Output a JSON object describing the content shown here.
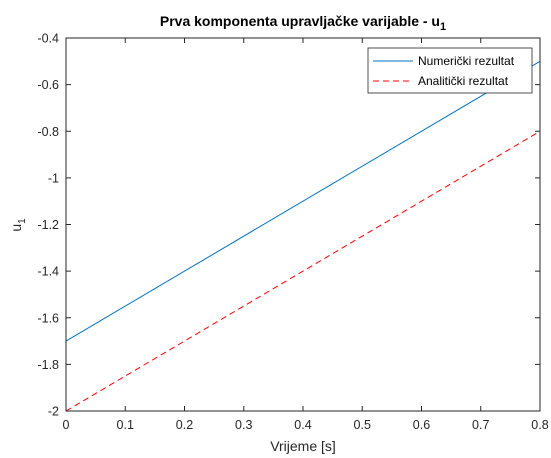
{
  "chart_data": {
    "type": "line",
    "title": "Prva komponenta upravljačke varijable - u",
    "title_subscript": "1",
    "xlabel": "Vrijeme [s]",
    "ylabel": "u",
    "ylabel_subscript": "1",
    "xlim": [
      0,
      0.8
    ],
    "ylim": [
      -2,
      -0.4
    ],
    "xticks": [
      0,
      0.1,
      0.2,
      0.3,
      0.4,
      0.5,
      0.6,
      0.7,
      0.8
    ],
    "xtick_labels": [
      "0",
      "0.1",
      "0.2",
      "0.3",
      "0.4",
      "0.5",
      "0.6",
      "0.7",
      "0.8"
    ],
    "yticks": [
      -2,
      -1.8,
      -1.6,
      -1.4,
      -1.2,
      -1,
      -0.8,
      -0.6,
      -0.4
    ],
    "ytick_labels": [
      "-2",
      "-1.8",
      "-1.6",
      "-1.4",
      "-1.2",
      "-1",
      "-0.8",
      "-0.6",
      "-0.4"
    ],
    "grid": false,
    "legend_position": "top-right",
    "series": [
      {
        "name": "Numerički rezultat",
        "color": "#0072BD",
        "dash": "solid",
        "x": [
          0,
          0.8
        ],
        "y": [
          -1.7,
          -0.5
        ]
      },
      {
        "name": "Analitički rezultat",
        "color": "#FF0000",
        "dash": "dashed",
        "x": [
          0,
          0.8
        ],
        "y": [
          -2.0,
          -0.8
        ]
      }
    ]
  }
}
